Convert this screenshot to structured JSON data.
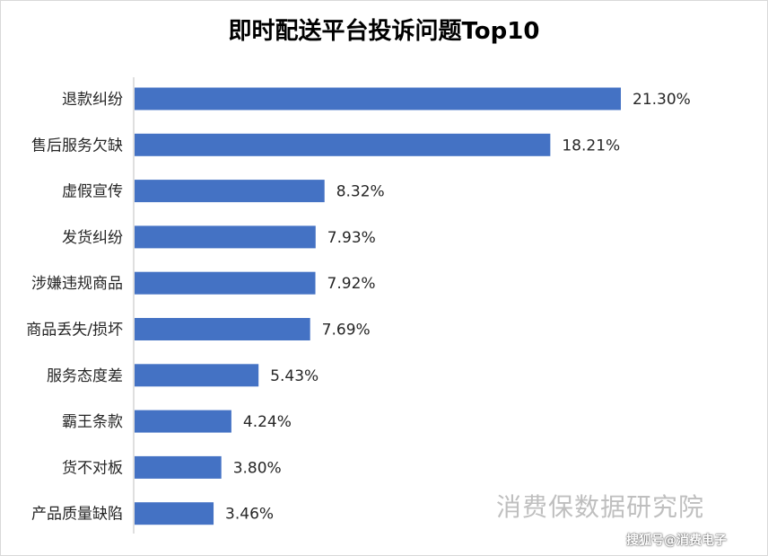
{
  "chart_data": {
    "type": "bar",
    "orientation": "horizontal",
    "title": "即时配送平台投诉问题Top10",
    "categories": [
      "退款纠纷",
      "售后服务欠缺",
      "虚假宣传",
      "发货纠纷",
      "涉嫌违规商品",
      "商品丢失/损坏",
      "服务态度差",
      "霸王条款",
      "货不对板",
      "产品质量缺陷"
    ],
    "values": [
      21.3,
      18.21,
      8.32,
      7.93,
      7.92,
      7.69,
      5.43,
      4.24,
      3.8,
      3.46
    ],
    "value_labels": [
      "21.30%",
      "18.21%",
      "8.32%",
      "7.93%",
      "7.92%",
      "7.69%",
      "5.43%",
      "4.24%",
      "3.80%",
      "3.46%"
    ],
    "xlim": [
      0,
      21.3
    ],
    "bar_color": "#4472c4",
    "grid": false,
    "legend": "none"
  },
  "watermark": "消费保数据研究院",
  "credit": "搜狐号@消费电子"
}
